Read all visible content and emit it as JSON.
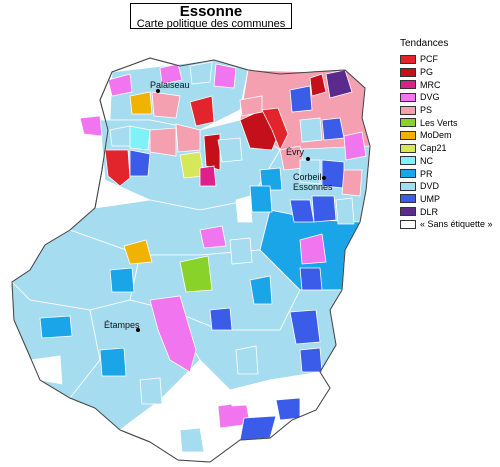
{
  "title": "Essonne",
  "subtitle": "Carte politique des communes",
  "legend": {
    "title": "Tendances",
    "items": [
      {
        "label": "PCF",
        "color": "#e2252c"
      },
      {
        "label": "PG",
        "color": "#c4101a"
      },
      {
        "label": "MRC",
        "color": "#e0208a"
      },
      {
        "label": "DVG",
        "color": "#f075ee"
      },
      {
        "label": "PS",
        "color": "#f4a0b0"
      },
      {
        "label": "Les Verts",
        "color": "#88d22a"
      },
      {
        "label": "MoDem",
        "color": "#f0b400"
      },
      {
        "label": "Cap21",
        "color": "#d6e85a"
      },
      {
        "label": "NC",
        "color": "#7ef2f7"
      },
      {
        "label": "PR",
        "color": "#1aa5e8"
      },
      {
        "label": "DVD",
        "color": "#a6dcf0"
      },
      {
        "label": "UMP",
        "color": "#3a5ce8"
      },
      {
        "label": "DLR",
        "color": "#5a2a8c"
      },
      {
        "label": "« Sans étiquette »",
        "color": "#ffffff"
      }
    ]
  },
  "cities": [
    {
      "name": "Palaiseau"
    },
    {
      "name": "Évry"
    },
    {
      "name": "Corbeil-Essonnes",
      "line1": "Corbeil-",
      "line2": "Essonnes"
    },
    {
      "name": "Étampes"
    }
  ]
}
